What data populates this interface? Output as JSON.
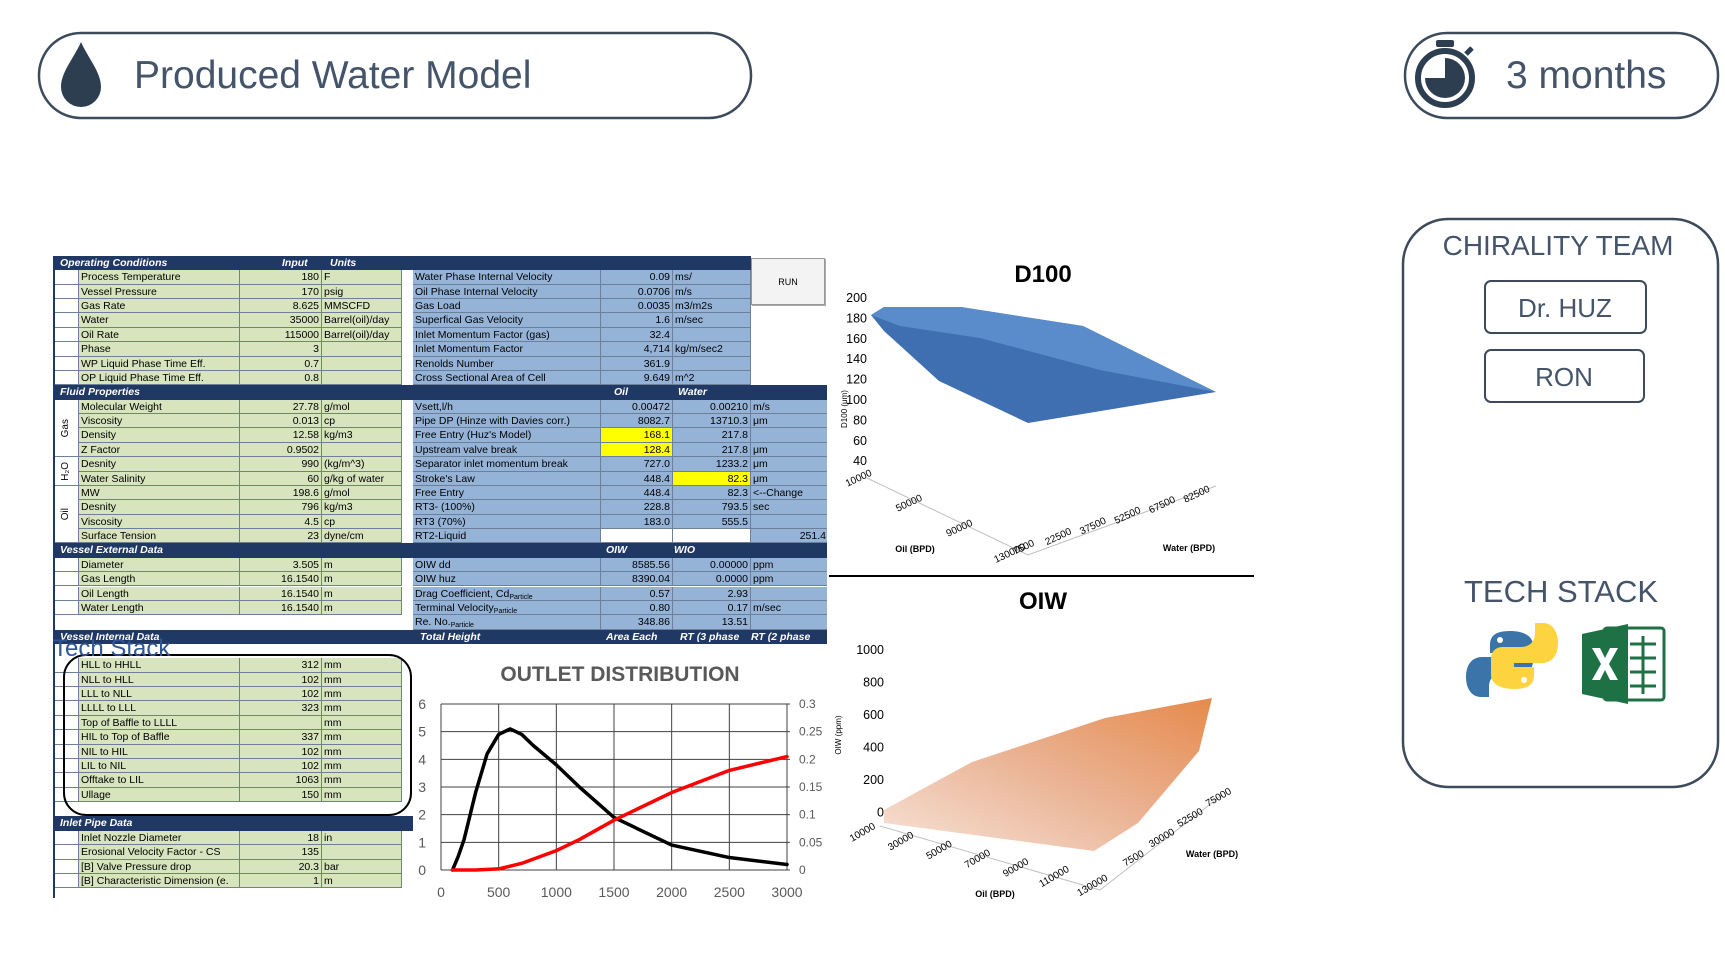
{
  "header": {
    "title": "Produced Water Model",
    "duration": "3 months"
  },
  "team": {
    "title": "CHIRALITY TEAM",
    "members": [
      "Dr. HUZ",
      "RON"
    ],
    "tech_stack_title": "TECH STACK"
  },
  "overlay_label": "Tech Stack",
  "spreadsheet": {
    "run_button": "RUN",
    "operating_conditions": {
      "headers": [
        "Operating Conditions",
        "Input",
        "Units"
      ],
      "rows": [
        [
          "Process Temperature",
          "180",
          "F"
        ],
        [
          "Vessel Pressure",
          "170",
          "psig"
        ],
        [
          "Gas Rate",
          "8.625",
          "MMSCFD"
        ],
        [
          "Water",
          "35000",
          "Barrel(oil)/day"
        ],
        [
          "Oil Rate",
          "115000",
          "Barrel(oil)/day"
        ],
        [
          "Phase",
          "3"
        ],
        [
          "WP Liquid Phase Time Eff.",
          "0.7"
        ],
        [
          "OP Liquid Phase Time Eff.",
          "0.8"
        ]
      ]
    },
    "fluid_properties": {
      "title": "Fluid Properties",
      "groups": [
        {
          "name": "Gas",
          "rows": [
            [
              "Molecular Weight",
              "27.78",
              "g/mol"
            ],
            [
              "Viscosity",
              "0.013",
              "cp"
            ],
            [
              "Density",
              "12.58",
              "kg/m3"
            ],
            [
              "Z Factor",
              "0.9502"
            ]
          ]
        },
        {
          "name": "H₂O",
          "rows": [
            [
              "Desnity",
              "990",
              "(kg/m^3)"
            ],
            [
              "Water Salinity",
              "60",
              "g/kg of water"
            ]
          ]
        },
        {
          "name": "Oil",
          "rows": [
            [
              "MW",
              "198.6",
              "g/mol"
            ],
            [
              "Desnity",
              "796",
              "kg/m3"
            ],
            [
              "Viscosity",
              "4.5",
              "cp"
            ],
            [
              "Surface Tension",
              "23",
              "dyne/cm"
            ]
          ]
        }
      ]
    },
    "vessel_external": {
      "title": "Vessel External Data",
      "rows": [
        [
          "Diameter",
          "3.505",
          "m"
        ],
        [
          "Gas Length",
          "16.1540",
          "m"
        ],
        [
          "Oil Length",
          "16.1540",
          "m"
        ],
        [
          "Water Length",
          "16.1540",
          "m"
        ]
      ]
    },
    "vessel_internal": {
      "title": "Vessel Internal Data",
      "rows": [
        [
          "HLL to HHLL",
          "312",
          "mm"
        ],
        [
          "NLL to HLL",
          "102",
          "mm"
        ],
        [
          "LLL to NLL",
          "102",
          "mm"
        ],
        [
          "LLLL to LLL",
          "323",
          "mm"
        ],
        [
          "Top of Baffle to LLLL",
          null,
          "mm"
        ],
        [
          "HIL to Top of Baffle",
          "337",
          "mm"
        ],
        [
          "NIL to HIL",
          "102",
          "mm"
        ],
        [
          "LIL to NIL",
          "102",
          "mm"
        ],
        [
          "Offtake to LIL",
          "1063",
          "mm"
        ],
        [
          "Ullage",
          "150",
          "mm"
        ]
      ]
    },
    "inlet_pipe": {
      "title": "Inlet Pipe Data",
      "rows": [
        [
          "Inlet Nozzle Diameter",
          "18",
          "in"
        ],
        [
          "Erosional Velocity Factor - CS",
          "135"
        ],
        [
          "[B] Valve Pressure drop",
          "20.3",
          "bar"
        ],
        [
          "[B] Characteristic Dimension (e.",
          "1",
          "m"
        ]
      ]
    },
    "results_1": {
      "rows": [
        [
          "Water Phase Internal Velocity",
          "0.09",
          "ms/"
        ],
        [
          "Oil Phase Internal Velocity",
          "0.0706",
          "m/s"
        ],
        [
          "Gas Load",
          "0.0035",
          "m3/m2s"
        ],
        [
          "Superfical Gas Velocity",
          "1.6",
          "m/sec"
        ],
        [
          "Inlet Momentum Factor (gas)",
          "32.4"
        ],
        [
          "Inlet Momentum Factor",
          "4,714",
          "kg/m/sec2"
        ],
        [
          "Renolds Number",
          "361.9"
        ],
        [
          "Cross Sectional Area of Cell",
          "9.649",
          "m^2"
        ]
      ]
    },
    "results_2": {
      "headers": [
        "Oil",
        "Water"
      ],
      "highlight_color": "#ffff00",
      "highlights": [
        [
          2,
          1
        ],
        [
          3,
          1
        ],
        [
          5,
          2
        ]
      ],
      "rows": [
        [
          "Vsett,l/h",
          "0.00472",
          "0.00210",
          "m/s"
        ],
        [
          "Pipe DP (Hinze with Davies corr.)",
          "8082.7",
          "13710.3",
          "μm"
        ],
        [
          "Free Entry (Huz's Model)",
          "168.1",
          "217.8"
        ],
        [
          "Upstream valve break",
          "128.4",
          "217.8",
          "μm"
        ],
        [
          "Separator inlet momentum break",
          "727.0",
          "1233.2",
          "μm"
        ],
        [
          "Stroke's Law",
          "448.4",
          "82.3",
          "μm"
        ],
        [
          "Free Entry",
          "448.4",
          "82.3",
          "<--Change"
        ],
        [
          "RT3- (100%)",
          "228.8",
          "793.5",
          "sec"
        ],
        [
          "RT3 (70%)",
          "183.0",
          "555.5"
        ],
        [
          "RT2-Liquid",
          null,
          null,
          "251.4"
        ]
      ]
    },
    "results_3": {
      "headers": [
        "OIW",
        "WIO"
      ],
      "rows": [
        [
          "OIW dd",
          "8585.56",
          "0.00000",
          "ppm"
        ],
        [
          "OIW huz",
          "8390.04",
          "0.0000",
          "ppm"
        ],
        [
          [
            "Drag Coefficient, Cd",
            "Particle"
          ],
          "0.57",
          "2.93"
        ],
        [
          [
            "Terminal Velocity",
            "Particle"
          ],
          "0.80",
          "0.17",
          "m/sec"
        ],
        [
          [
            "Re. No.",
            "Particle"
          ],
          "348.86",
          "13.51"
        ]
      ]
    },
    "results_4": {
      "headers": [
        "Total Height",
        "Area Each",
        "RT (3 phase",
        "RT (2 phase"
      ]
    }
  },
  "outlet_distribution": {
    "type": "line",
    "title": "OUTLET DISTRIBUTION",
    "grid": true,
    "xlim": [
      0,
      3000
    ],
    "xticks": [
      0,
      500,
      1000,
      1500,
      2000,
      2500,
      3000
    ],
    "ylim": [
      0,
      6
    ],
    "yticks": [
      0,
      1,
      2,
      3,
      4,
      5,
      6
    ],
    "y2lim": [
      0,
      0.3
    ],
    "y2ticks": [
      0,
      0.05,
      0.1,
      0.15,
      0.2,
      0.25,
      0.3
    ],
    "series": [
      {
        "color": "#000000",
        "x": [
          100,
          150,
          200,
          300,
          400,
          500,
          600,
          700,
          800,
          1000,
          1200,
          1500,
          2000,
          2500,
          3000
        ],
        "values": [
          0,
          0.5,
          1.1,
          2.8,
          4.2,
          4.9,
          5.1,
          4.9,
          4.5,
          3.8,
          3.0,
          1.9,
          0.9,
          0.45,
          0.2
        ]
      },
      {
        "color": "#ff0000",
        "axis": "y2",
        "x": [
          100,
          300,
          500,
          700,
          1000,
          1200,
          1500,
          2000,
          2500,
          3000
        ],
        "values": [
          0,
          0,
          0.002,
          0.012,
          0.035,
          0.055,
          0.09,
          0.14,
          0.18,
          0.205
        ]
      }
    ]
  },
  "surfaces": [
    {
      "title": "D100",
      "z_label": "D100 (μm)",
      "x_label": "Oil (BPD)",
      "y_label": "Water (BPD)",
      "z_ticks": [
        200,
        180,
        160,
        140,
        120,
        100,
        80,
        60,
        40
      ],
      "x_ticks": [
        10000,
        50000,
        90000,
        130000
      ],
      "y_ticks": [
        7500,
        22500,
        37500,
        52500,
        67500,
        82500
      ]
    },
    {
      "title": "OIW",
      "z_label": "OIW (ppm)",
      "x_label": "Oil (BPD)",
      "y_label": "Water (BPD)",
      "z_ticks": [
        1000,
        800,
        600,
        400,
        200,
        0
      ],
      "x_ticks": [
        10000,
        30000,
        50000,
        70000,
        90000,
        110000,
        130000
      ],
      "y_ticks": [
        7500,
        30000,
        52500,
        75000
      ]
    }
  ]
}
